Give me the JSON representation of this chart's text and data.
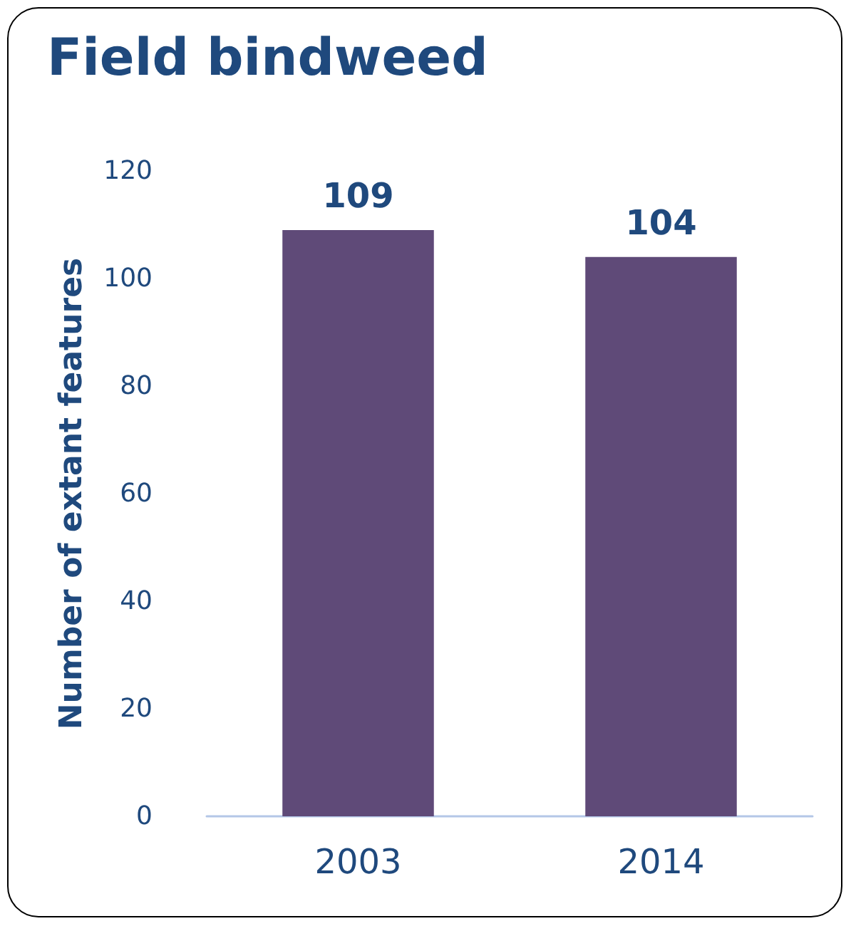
{
  "chart_data": {
    "type": "bar",
    "title": "Field bindweed",
    "ylabel": "Number of extant features",
    "categories": [
      "2003",
      "2014"
    ],
    "values": [
      109,
      104
    ],
    "color": "#5f4a78",
    "ylim": [
      0,
      120
    ],
    "yticks": [
      0,
      20,
      40,
      60,
      80,
      100,
      120
    ],
    "grid": false,
    "data_labels": true
  }
}
